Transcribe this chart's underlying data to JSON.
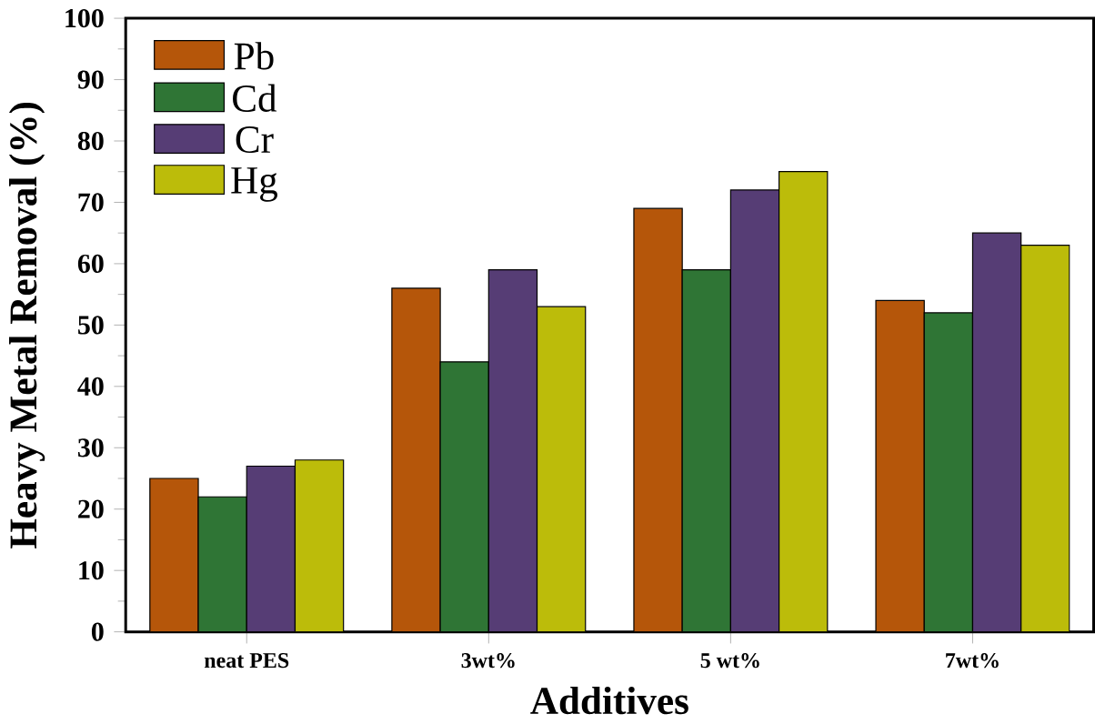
{
  "chart_data": {
    "type": "bar",
    "xlabel": "Additives",
    "ylabel": "Heavy Metal Removal (%)",
    "categories": [
      "neat PES",
      "3wt%",
      "5 wt%",
      "7wt%"
    ],
    "series": [
      {
        "name": "Pb",
        "color": "#b5560a",
        "values": [
          25,
          56,
          69,
          54
        ]
      },
      {
        "name": "Cd",
        "color": "#2f7535",
        "values": [
          22,
          44,
          59,
          52
        ]
      },
      {
        "name": "Cr",
        "color": "#563d75",
        "values": [
          27,
          59,
          72,
          65
        ]
      },
      {
        "name": "Hg",
        "color": "#bcbc0a",
        "values": [
          28,
          53,
          75,
          63
        ]
      }
    ],
    "ylim": [
      0,
      100
    ],
    "yticks": [
      0,
      10,
      20,
      30,
      40,
      50,
      60,
      70,
      80,
      90,
      100
    ],
    "legend": "top left",
    "grid": false
  }
}
